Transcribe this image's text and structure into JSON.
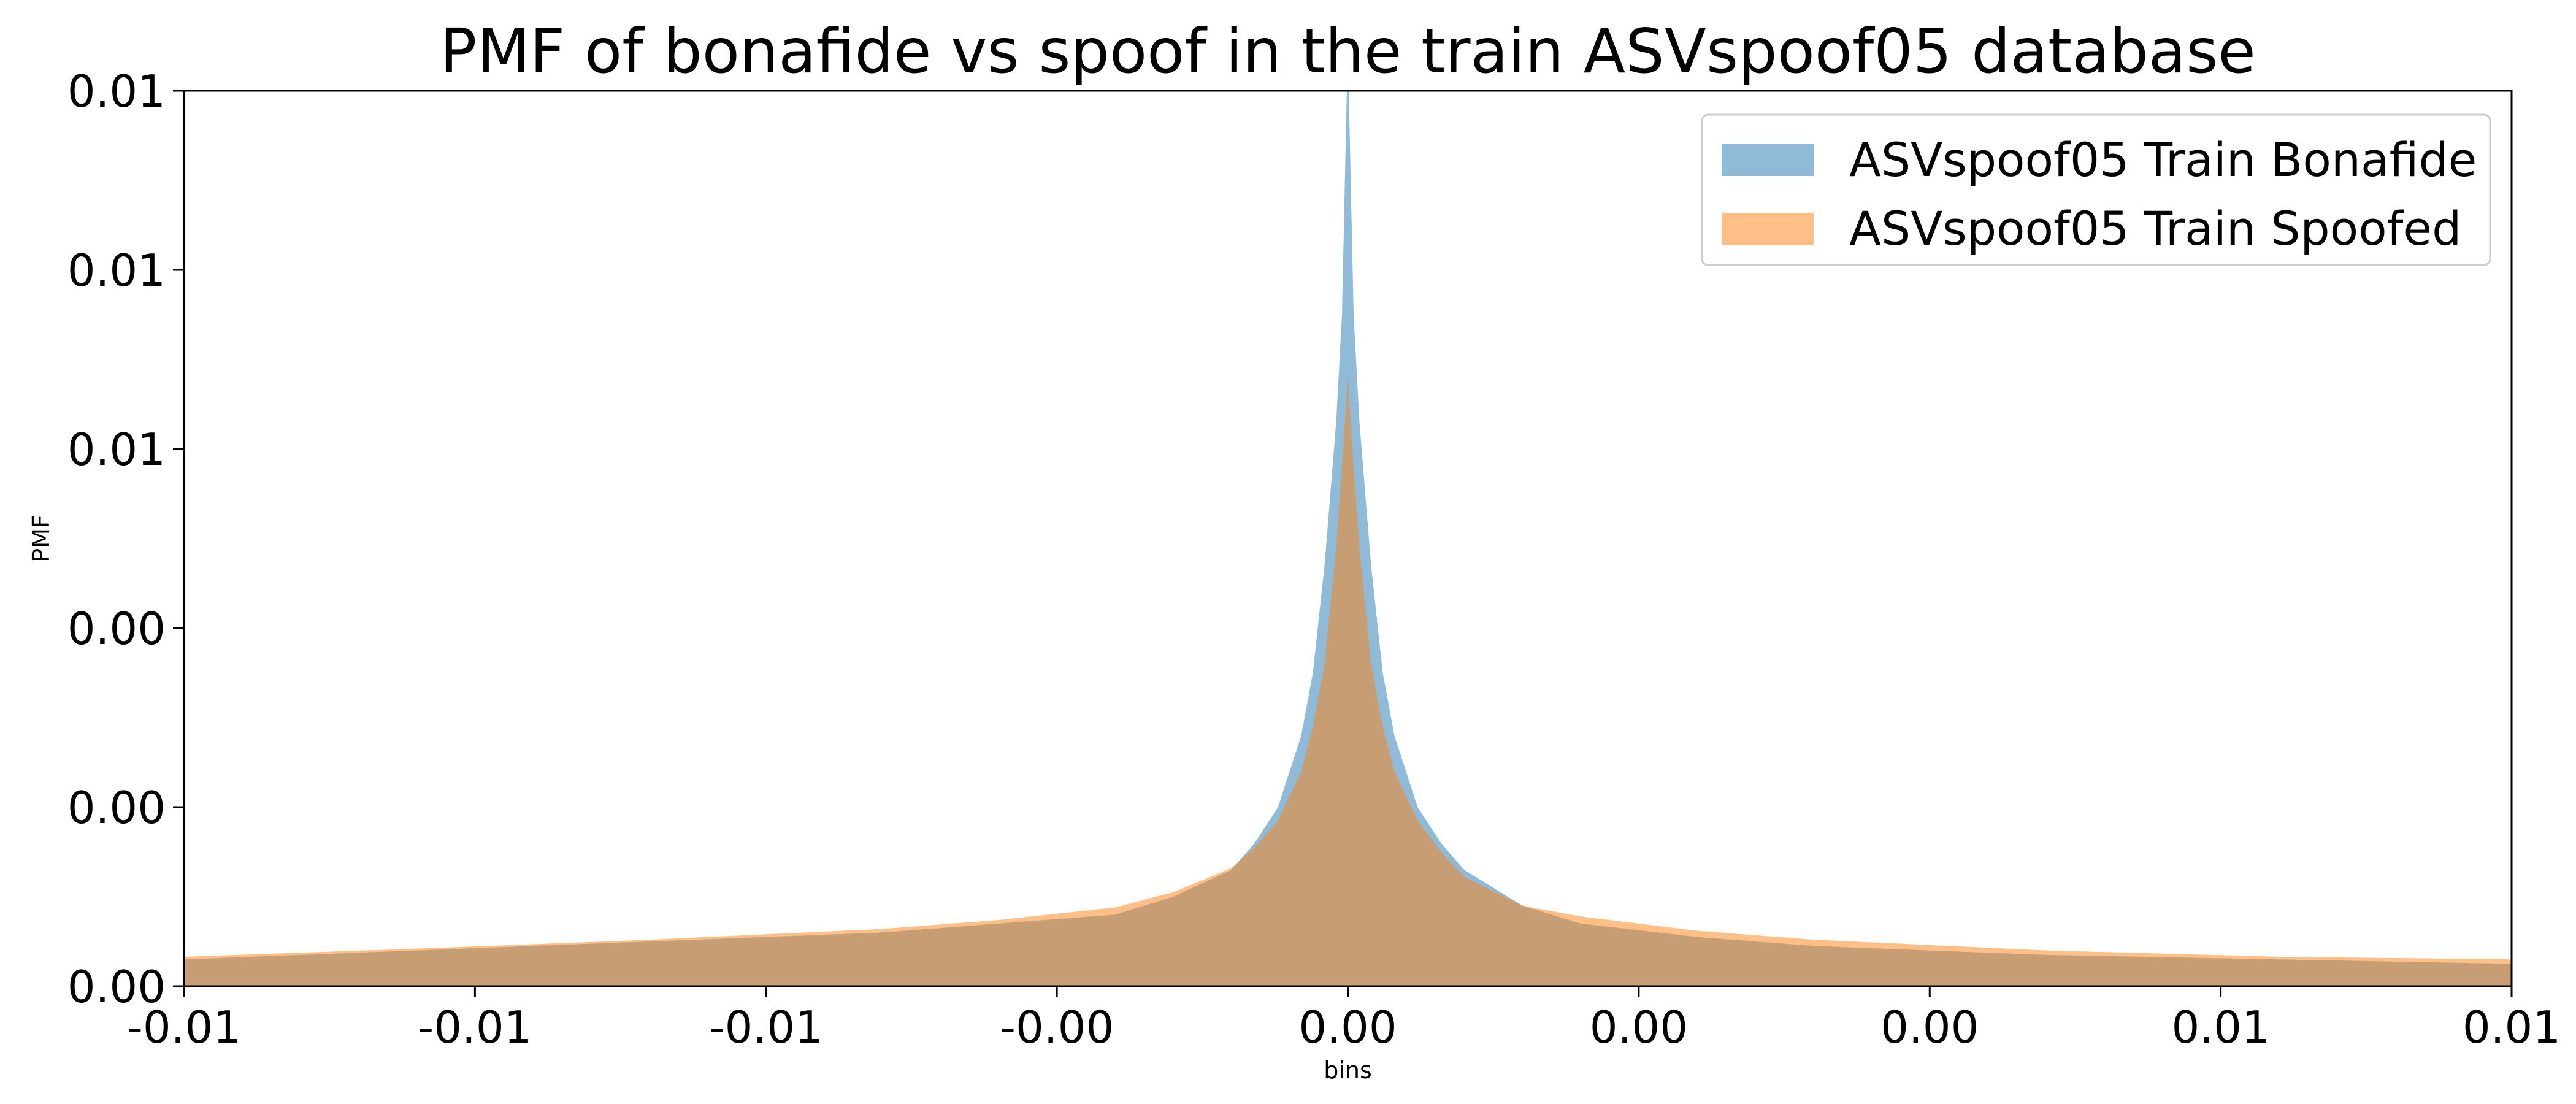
{
  "chart_data": {
    "type": "area",
    "title": "PMF of bonafide vs spoof in the train ASVspoof05 database",
    "xlabel": "bins",
    "ylabel": "PMF",
    "x_tick_labels": [
      "-0.01",
      "-0.01",
      "-0.01",
      "-0.00",
      "0.00",
      "0.00",
      "0.00",
      "0.01",
      "0.01"
    ],
    "y_tick_labels": [
      "0.00",
      "0.00",
      "0.00",
      "0.01",
      "0.01",
      "0.01"
    ],
    "xlim": [
      -0.01,
      0.01
    ],
    "ylim": [
      0,
      0.01
    ],
    "grid": false,
    "legend_position": "top-right",
    "series": [
      {
        "name": "ASVspoof05 Train Bonafide",
        "color": "#1f77b4",
        "opacity": 0.5,
        "x": [
          -0.01,
          -0.008,
          -0.006,
          -0.004,
          -0.003,
          -0.002,
          -0.0015,
          -0.001,
          -0.0008,
          -0.0006,
          -0.0004,
          -0.0003,
          -0.0002,
          -0.0001,
          -5e-05,
          0,
          5e-05,
          0.0001,
          0.0002,
          0.0003,
          0.0004,
          0.0006,
          0.0008,
          0.001,
          0.0015,
          0.002,
          0.003,
          0.004,
          0.006,
          0.008,
          0.01
        ],
        "y": [
          0.0003,
          0.0004,
          0.0005,
          0.0006,
          0.0007,
          0.0008,
          0.001,
          0.0013,
          0.0016,
          0.002,
          0.0028,
          0.0035,
          0.0047,
          0.0063,
          0.0075,
          0.0105,
          0.0075,
          0.0063,
          0.0047,
          0.0035,
          0.0028,
          0.002,
          0.0016,
          0.0013,
          0.0009,
          0.0007,
          0.00055,
          0.00045,
          0.00035,
          0.0003,
          0.00025
        ]
      },
      {
        "name": "ASVspoof05 Train Spoofed",
        "color": "#ff7f0e",
        "opacity": 0.5,
        "x": [
          -0.01,
          -0.008,
          -0.006,
          -0.004,
          -0.003,
          -0.002,
          -0.0015,
          -0.001,
          -0.0008,
          -0.0006,
          -0.0004,
          -0.0003,
          -0.0002,
          -0.0001,
          -5e-05,
          0,
          5e-05,
          0.0001,
          0.0002,
          0.0003,
          0.0004,
          0.0006,
          0.0008,
          0.001,
          0.0015,
          0.002,
          0.003,
          0.004,
          0.006,
          0.008,
          0.01
        ],
        "y": [
          0.00033,
          0.00042,
          0.00052,
          0.00064,
          0.00074,
          0.00088,
          0.00105,
          0.00132,
          0.00155,
          0.00185,
          0.0024,
          0.0029,
          0.0036,
          0.0049,
          0.0058,
          0.0068,
          0.0058,
          0.0049,
          0.0036,
          0.0029,
          0.0024,
          0.00185,
          0.0015,
          0.00122,
          0.0009,
          0.00078,
          0.00062,
          0.00052,
          0.0004,
          0.00033,
          0.0003
        ]
      }
    ]
  }
}
